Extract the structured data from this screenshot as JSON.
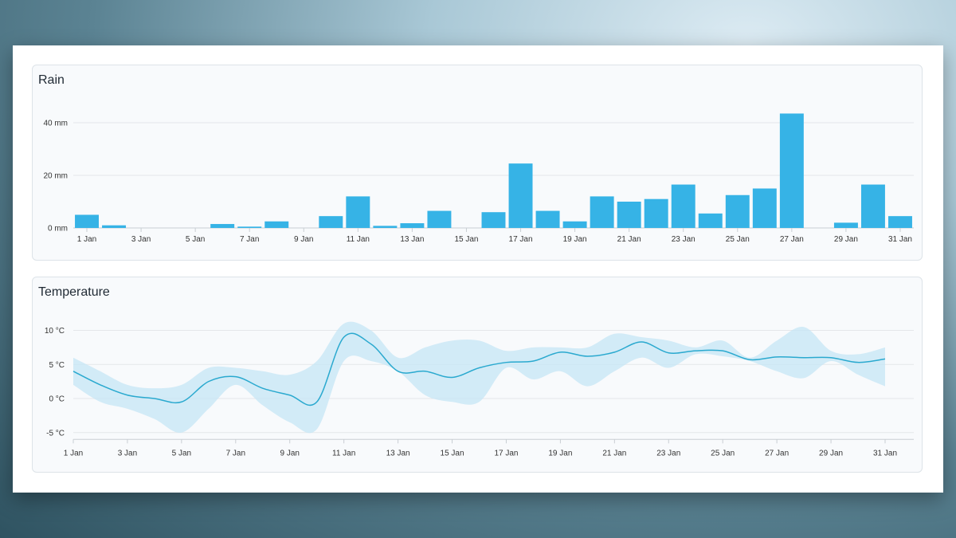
{
  "chart_data": [
    {
      "type": "bar",
      "title": "Rain",
      "categories": [
        "1 Jan",
        "2 Jan",
        "3 Jan",
        "4 Jan",
        "5 Jan",
        "6 Jan",
        "7 Jan",
        "8 Jan",
        "9 Jan",
        "10 Jan",
        "11 Jan",
        "12 Jan",
        "13 Jan",
        "14 Jan",
        "15 Jan",
        "16 Jan",
        "17 Jan",
        "18 Jan",
        "19 Jan",
        "20 Jan",
        "21 Jan",
        "22 Jan",
        "23 Jan",
        "24 Jan",
        "25 Jan",
        "26 Jan",
        "27 Jan",
        "28 Jan",
        "29 Jan",
        "30 Jan",
        "31 Jan"
      ],
      "values": [
        5,
        1,
        0,
        0,
        0,
        1.5,
        0.5,
        2.5,
        0,
        4.5,
        12,
        0.8,
        1.8,
        6.5,
        0,
        6,
        24.5,
        6.5,
        2.5,
        12,
        10,
        11,
        16.5,
        5.5,
        12.5,
        15,
        43.5,
        0,
        2,
        16.5,
        4.5
      ],
      "x_tick_labels": [
        "1 Jan",
        "3 Jan",
        "5 Jan",
        "7 Jan",
        "9 Jan",
        "11 Jan",
        "13 Jan",
        "15 Jan",
        "17 Jan",
        "19 Jan",
        "21 Jan",
        "23 Jan",
        "25 Jan",
        "27 Jan",
        "29 Jan",
        "31 Jan"
      ],
      "y_ticks": [
        0,
        20,
        40
      ],
      "y_tick_labels": [
        "0 mm",
        "20 mm",
        "40 mm"
      ],
      "ylim": [
        0,
        46
      ],
      "grid": true,
      "color": "#36b3e6"
    },
    {
      "type": "area",
      "title": "Temperature",
      "x": [
        "1 Jan",
        "2 Jan",
        "3 Jan",
        "4 Jan",
        "5 Jan",
        "6 Jan",
        "7 Jan",
        "8 Jan",
        "9 Jan",
        "10 Jan",
        "11 Jan",
        "12 Jan",
        "13 Jan",
        "14 Jan",
        "15 Jan",
        "16 Jan",
        "17 Jan",
        "18 Jan",
        "19 Jan",
        "20 Jan",
        "21 Jan",
        "22 Jan",
        "23 Jan",
        "24 Jan",
        "25 Jan",
        "26 Jan",
        "27 Jan",
        "28 Jan",
        "29 Jan",
        "30 Jan",
        "31 Jan"
      ],
      "series": [
        {
          "values": [
            4,
            2,
            0.5,
            0,
            -0.5,
            2.5,
            3.2,
            1.5,
            0.5,
            -0.5,
            9,
            8,
            4,
            4,
            3.1,
            4.5,
            5.3,
            5.5,
            6.8,
            6.2,
            6.8,
            8.3,
            6.7,
            7,
            7,
            5.7,
            6.1,
            6,
            6,
            5.3,
            5.8
          ]
        }
      ],
      "range": {
        "low": [
          2,
          -0.5,
          -1.5,
          -3,
          -5,
          -1.5,
          2,
          -1,
          -3.5,
          -4.5,
          5.5,
          5.5,
          4,
          0.5,
          -0.5,
          -0.5,
          4.5,
          2.8,
          4,
          1.8,
          4,
          6,
          4.5,
          6.5,
          6.2,
          5.5,
          4,
          3,
          5.5,
          3.5,
          1.8
        ],
        "high": [
          6,
          4,
          2,
          1.5,
          2,
          4.5,
          4.5,
          4,
          3.5,
          5.5,
          11,
          10,
          6,
          7.5,
          8.5,
          8.5,
          7,
          7.5,
          7.5,
          7.5,
          9.5,
          9,
          8.5,
          7.5,
          8.5,
          6,
          8.5,
          10.5,
          7,
          6.5,
          7.5
        ]
      },
      "x_tick_labels": [
        "1 Jan",
        "3 Jan",
        "5 Jan",
        "7 Jan",
        "9 Jan",
        "11 Jan",
        "13 Jan",
        "15 Jan",
        "17 Jan",
        "19 Jan",
        "21 Jan",
        "23 Jan",
        "25 Jan",
        "27 Jan",
        "29 Jan",
        "31 Jan"
      ],
      "y_ticks": [
        -5,
        0,
        5,
        10
      ],
      "y_tick_labels": [
        "-5 °C",
        "0 °C",
        "5 °C",
        "10 °C"
      ],
      "ylim": [
        -6,
        11
      ],
      "grid": true,
      "line_color": "#2aa9cf",
      "band_color": "#c6e6f6"
    }
  ]
}
